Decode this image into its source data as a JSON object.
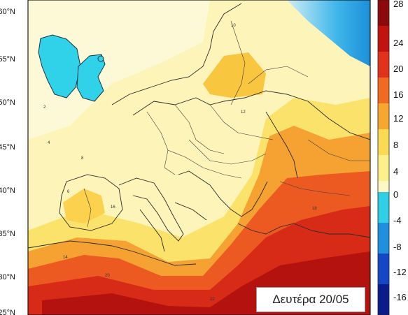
{
  "map": {
    "latitude_labels": [
      "60°N",
      "55°N",
      "50°N",
      "45°N",
      "40°N",
      "35°N",
      "30°N",
      "25°N"
    ],
    "contour_labels": [
      "2",
      "4",
      "6",
      "8",
      "10",
      "12",
      "14",
      "16",
      "18",
      "20",
      "22"
    ],
    "date_label": "Δευτέρα 20/05"
  },
  "color_scale": {
    "labels": [
      "28",
      "24",
      "20",
      "16",
      "12",
      "8",
      "4",
      "0",
      "-4",
      "-8",
      "-12",
      "-16"
    ],
    "colors": [
      "#8c0a0c",
      "#c2130f",
      "#e3321b",
      "#f06a22",
      "#f7a72f",
      "#fad955",
      "#fbf08a",
      "#fdf8c4",
      "#2fd0e6",
      "#1f8fe0",
      "#1447c6",
      "#0a1c8c"
    ]
  }
}
